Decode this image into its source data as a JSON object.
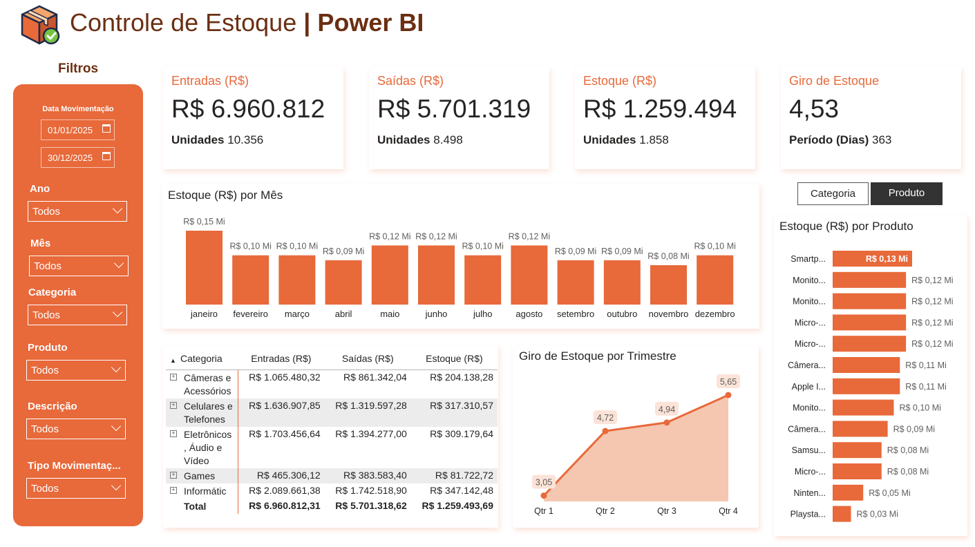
{
  "header": {
    "title_light": "Controle de Estoque",
    "separator": "|",
    "title_bold": "Power BI",
    "logo_icon": "box-check-icon"
  },
  "filters": {
    "title": "Filtros",
    "date_label": "Data Movimentação",
    "date_start": "01/01/2025",
    "date_end": "30/12/2025",
    "fields": [
      {
        "label": "Ano",
        "value": "Todos"
      },
      {
        "label": "Mês",
        "value": "Todos"
      },
      {
        "label": "Categoria",
        "value": "Todos"
      },
      {
        "label": "Produto",
        "value": "Todos"
      },
      {
        "label": "Descrição",
        "value": "Todos"
      },
      {
        "label": "Tipo Movimentaç...",
        "value": "Todos"
      }
    ]
  },
  "kpis": [
    {
      "title": "Entradas (R$)",
      "value": "R$ 6.960.812",
      "sub_label": "Unidades",
      "sub_value": "10.356"
    },
    {
      "title": "Saídas (R$)",
      "value": "R$ 5.701.319",
      "sub_label": "Unidades",
      "sub_value": "8.498"
    },
    {
      "title": "Estoque (R$)",
      "value": "R$ 1.259.494",
      "sub_label": "Unidades",
      "sub_value": "1.858"
    },
    {
      "title": "Giro de Estoque",
      "value": "4,53",
      "sub_label": "Período (Dias)",
      "sub_value": "363"
    }
  ],
  "toggle": {
    "option_a": "Categoria",
    "option_b": "Produto",
    "selected": "Produto"
  },
  "colors": {
    "accent": "#e8693a",
    "brand_dark": "#6b2f12",
    "area_fill": "#f4c4ad",
    "toggle_active": "#333333"
  },
  "chart_data": [
    {
      "type": "bar",
      "title": "Estoque (R$) por Mês",
      "categories": [
        "janeiro",
        "fevereiro",
        "março",
        "abril",
        "maio",
        "junho",
        "julho",
        "agosto",
        "setembro",
        "outubro",
        "novembro",
        "dezembro"
      ],
      "values": [
        0.15,
        0.1,
        0.1,
        0.09,
        0.12,
        0.12,
        0.1,
        0.12,
        0.09,
        0.09,
        0.08,
        0.1
      ],
      "labels": [
        "R$ 0,15 Mi",
        "R$ 0,10 Mi",
        "R$ 0,10 Mi",
        "R$ 0,09 Mi",
        "R$ 0,12 Mi",
        "R$ 0,12 Mi",
        "R$ 0,10 Mi",
        "R$ 0,12 Mi",
        "R$ 0,09 Mi",
        "R$ 0,09 Mi",
        "R$ 0,08 Mi",
        "R$ 0,10 Mi"
      ],
      "unit": "R$ Mi"
    },
    {
      "type": "area",
      "title": "Giro de Estoque por Trimestre",
      "categories": [
        "Qtr 1",
        "Qtr 2",
        "Qtr 3",
        "Qtr 4"
      ],
      "values": [
        3.05,
        4.72,
        4.94,
        5.65
      ],
      "labels": [
        "3,05",
        "4,72",
        "4,94",
        "5,65"
      ]
    },
    {
      "type": "bar",
      "orientation": "horizontal",
      "title": "Estoque (R$) por Produto",
      "categories": [
        "Smartp...",
        "Monito...",
        "Monito...",
        "Micro-...",
        "Micro-...",
        "Câmera...",
        "Apple I...",
        "Monito...",
        "Câmera...",
        "Samsu...",
        "Micro-...",
        "Ninten...",
        "Playsta..."
      ],
      "values": [
        0.13,
        0.12,
        0.12,
        0.12,
        0.12,
        0.11,
        0.11,
        0.1,
        0.09,
        0.08,
        0.08,
        0.05,
        0.03
      ],
      "labels": [
        "R$ 0,13 Mi",
        "R$ 0,12 Mi",
        "R$ 0,12 Mi",
        "R$ 0,12 Mi",
        "R$ 0,12 Mi",
        "R$ 0,11 Mi",
        "R$ 0,11 Mi",
        "R$ 0,10 Mi",
        "R$ 0,09 Mi",
        "R$ 0,08 Mi",
        "R$ 0,08 Mi",
        "R$ 0,05 Mi",
        "R$ 0,03 Mi"
      ],
      "unit": "R$ Mi"
    },
    {
      "type": "table",
      "sort_column": "Categoria",
      "sort_icon": "sort-asc-icon",
      "expand_icon": "expand-plus-icon",
      "columns": [
        "Categoria",
        "Entradas (R$)",
        "Saídas (R$)",
        "Estoque (R$)"
      ],
      "rows": [
        [
          "Câmeras e Acessórios",
          "R$ 1.065.480,32",
          "R$ 861.342,04",
          "R$ 204.138,28"
        ],
        [
          "Celulares e Telefones",
          "R$ 1.636.907,85",
          "R$ 1.319.597,28",
          "R$ 317.310,57"
        ],
        [
          "Eletrônicos , Áudio e Vídeo",
          "R$ 1.703.456,64",
          "R$ 1.394.277,00",
          "R$ 309.179,64"
        ],
        [
          "Games",
          "R$ 465.306,12",
          "R$ 383.583,40",
          "R$ 81.722,72"
        ],
        [
          "Informátic",
          "R$ 2.089.661,38",
          "R$ 1.742.518,90",
          "R$ 347.142,48"
        ]
      ],
      "total": [
        "Total",
        "R$ 6.960.812,31",
        "R$ 5.701.318,62",
        "R$ 1.259.493,69"
      ]
    }
  ]
}
